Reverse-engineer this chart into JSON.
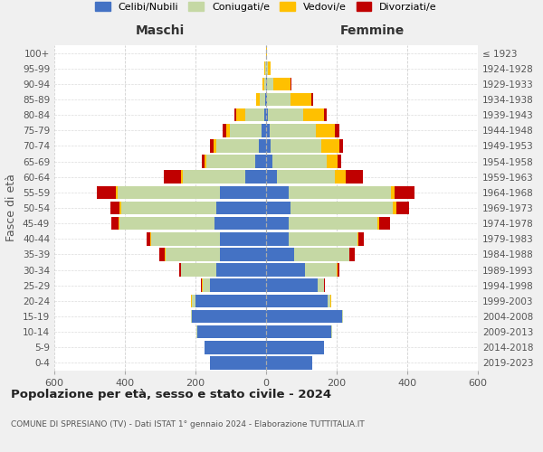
{
  "age_groups": [
    "0-4",
    "5-9",
    "10-14",
    "15-19",
    "20-24",
    "25-29",
    "30-34",
    "35-39",
    "40-44",
    "45-49",
    "50-54",
    "55-59",
    "60-64",
    "65-69",
    "70-74",
    "75-79",
    "80-84",
    "85-89",
    "90-94",
    "95-99",
    "100+"
  ],
  "birth_years": [
    "2019-2023",
    "2014-2018",
    "2009-2013",
    "2004-2008",
    "1999-2003",
    "1994-1998",
    "1989-1993",
    "1984-1988",
    "1979-1983",
    "1974-1978",
    "1969-1973",
    "1964-1968",
    "1959-1963",
    "1954-1958",
    "1949-1953",
    "1944-1948",
    "1939-1943",
    "1934-1938",
    "1929-1933",
    "1924-1928",
    "≤ 1923"
  ],
  "colors": {
    "celibe": "#4472c4",
    "coniugato": "#c5d8a4",
    "vedovo": "#ffc000",
    "divorziato": "#c00000"
  },
  "maschi": {
    "celibe": [
      160,
      175,
      195,
      210,
      200,
      160,
      140,
      130,
      130,
      145,
      140,
      130,
      60,
      30,
      20,
      12,
      5,
      2,
      0,
      0,
      0
    ],
    "coniugato": [
      0,
      0,
      2,
      2,
      10,
      20,
      100,
      155,
      195,
      270,
      270,
      290,
      175,
      140,
      120,
      90,
      55,
      15,
      5,
      2,
      0
    ],
    "vedovo": [
      0,
      0,
      0,
      0,
      2,
      2,
      2,
      2,
      2,
      3,
      5,
      5,
      5,
      5,
      10,
      10,
      25,
      10,
      5,
      2,
      0
    ],
    "divorziato": [
      0,
      0,
      0,
      0,
      0,
      2,
      5,
      15,
      12,
      20,
      25,
      55,
      50,
      8,
      10,
      10,
      5,
      2,
      0,
      0,
      0
    ]
  },
  "femmine": {
    "nubile": [
      130,
      165,
      185,
      215,
      175,
      145,
      110,
      80,
      65,
      65,
      70,
      65,
      30,
      18,
      12,
      10,
      5,
      3,
      2,
      0,
      0
    ],
    "coniugata": [
      0,
      0,
      2,
      2,
      8,
      18,
      90,
      155,
      195,
      250,
      290,
      290,
      165,
      155,
      145,
      130,
      100,
      65,
      18,
      5,
      0
    ],
    "vedova": [
      0,
      0,
      0,
      0,
      2,
      2,
      2,
      2,
      2,
      5,
      10,
      10,
      30,
      30,
      50,
      55,
      60,
      60,
      50,
      8,
      2
    ],
    "divorziata": [
      0,
      0,
      0,
      0,
      0,
      2,
      5,
      15,
      15,
      30,
      35,
      55,
      50,
      10,
      12,
      12,
      8,
      5,
      2,
      0,
      0
    ]
  },
  "xlim": 600,
  "title": "Popolazione per età, sesso e stato civile - 2024",
  "subtitle": "COMUNE DI SPRESIANO (TV) - Dati ISTAT 1° gennaio 2024 - Elaborazione TUTTITALIA.IT",
  "ylabel_left": "Fasce di età",
  "xlabel_left": "Maschi",
  "xlabel_right": "Femmine",
  "legend_labels": [
    "Celibi/Nubili",
    "Coniugati/e",
    "Vedovi/e",
    "Divorziati/e"
  ],
  "background_color": "#f0f0f0",
  "plot_background": "#ffffff",
  "grid_color": "#cccccc"
}
